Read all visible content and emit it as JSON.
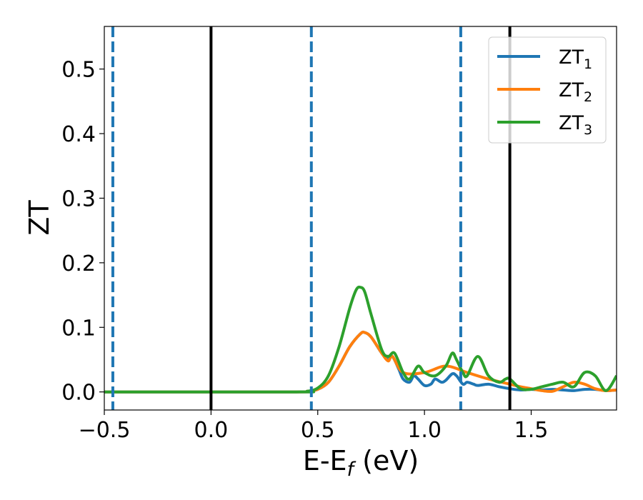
{
  "chart_data": {
    "type": "line",
    "title": "",
    "xlabel": {
      "base": "E-E",
      "subscript": "f",
      "suffix": " (eV)"
    },
    "ylabel": "ZT",
    "xlim": [
      -0.5,
      1.9
    ],
    "ylim": [
      -0.028,
      0.566
    ],
    "x_ticks": [
      -0.5,
      0.0,
      0.5,
      1.0,
      1.5
    ],
    "x_tick_labels": [
      "−0.5",
      "0.0",
      "0.5",
      "1.0",
      "1.5"
    ],
    "y_ticks": [
      0.0,
      0.1,
      0.2,
      0.3,
      0.4,
      0.5
    ],
    "y_tick_labels": [
      "0.0",
      "0.1",
      "0.2",
      "0.3",
      "0.4",
      "0.5"
    ],
    "grid": false,
    "legend_position": "top-right",
    "vertical_lines": [
      {
        "x": -0.46,
        "style": "dashed",
        "color": "#1f77b4"
      },
      {
        "x": 0.0,
        "style": "solid",
        "color": "#000000"
      },
      {
        "x": 0.47,
        "style": "dashed",
        "color": "#1f77b4"
      },
      {
        "x": 1.17,
        "style": "dashed",
        "color": "#1f77b4"
      },
      {
        "x": 1.4,
        "style": "solid",
        "color": "#000000"
      }
    ],
    "series": [
      {
        "name": "ZT",
        "subscript": "1",
        "color": "#1f77b4",
        "x": [
          -0.5,
          0.4,
          0.45,
          0.5,
          0.55,
          0.6,
          0.65,
          0.7,
          0.72,
          0.75,
          0.8,
          0.83,
          0.85,
          0.88,
          0.9,
          0.93,
          0.95,
          0.97,
          1.0,
          1.03,
          1.05,
          1.08,
          1.1,
          1.13,
          1.15,
          1.18,
          1.2,
          1.23,
          1.25,
          1.3,
          1.35,
          1.4,
          1.45,
          1.5,
          1.55,
          1.6,
          1.65,
          1.7,
          1.75,
          1.8,
          1.85,
          1.9
        ],
        "y": [
          0.0,
          0.0,
          0.001,
          0.004,
          0.015,
          0.04,
          0.07,
          0.09,
          0.092,
          0.085,
          0.06,
          0.05,
          0.055,
          0.035,
          0.02,
          0.015,
          0.025,
          0.02,
          0.01,
          0.012,
          0.02,
          0.015,
          0.018,
          0.028,
          0.025,
          0.012,
          0.015,
          0.012,
          0.01,
          0.012,
          0.008,
          0.005,
          0.003,
          0.004,
          0.003,
          0.004,
          0.003,
          0.002,
          0.004,
          0.004,
          0.002,
          0.003
        ]
      },
      {
        "name": "ZT",
        "subscript": "2",
        "color": "#ff7f0e",
        "x": [
          -0.5,
          0.4,
          0.45,
          0.5,
          0.55,
          0.6,
          0.65,
          0.7,
          0.72,
          0.75,
          0.8,
          0.83,
          0.85,
          0.9,
          1.0,
          1.1,
          1.2,
          1.3,
          1.4,
          1.45,
          1.5,
          1.55,
          1.6,
          1.65,
          1.7,
          1.75,
          1.8,
          1.85,
          1.9
        ],
        "y": [
          0.0,
          0.0,
          0.001,
          0.004,
          0.015,
          0.04,
          0.07,
          0.09,
          0.092,
          0.085,
          0.06,
          0.048,
          0.055,
          0.03,
          0.03,
          0.04,
          0.03,
          0.02,
          0.012,
          0.008,
          0.005,
          0.002,
          0.001,
          0.008,
          0.015,
          0.012,
          0.005,
          0.002,
          0.003
        ]
      },
      {
        "name": "ZT",
        "subscript": "3",
        "color": "#2ca02c",
        "x": [
          -0.5,
          0.4,
          0.45,
          0.5,
          0.55,
          0.6,
          0.65,
          0.68,
          0.7,
          0.72,
          0.75,
          0.8,
          0.83,
          0.86,
          0.9,
          0.93,
          0.97,
          1.0,
          1.05,
          1.1,
          1.13,
          1.15,
          1.18,
          1.2,
          1.25,
          1.3,
          1.35,
          1.38,
          1.4,
          1.45,
          1.5,
          1.55,
          1.6,
          1.65,
          1.7,
          1.75,
          1.8,
          1.85,
          1.9
        ],
        "y": [
          0.0,
          0.0,
          0.001,
          0.006,
          0.025,
          0.07,
          0.13,
          0.158,
          0.162,
          0.155,
          0.12,
          0.065,
          0.055,
          0.06,
          0.03,
          0.02,
          0.04,
          0.03,
          0.025,
          0.04,
          0.06,
          0.05,
          0.03,
          0.025,
          0.055,
          0.025,
          0.015,
          0.02,
          0.02,
          0.005,
          0.004,
          0.008,
          0.012,
          0.015,
          0.008,
          0.03,
          0.025,
          0.002,
          0.025
        ]
      }
    ]
  }
}
